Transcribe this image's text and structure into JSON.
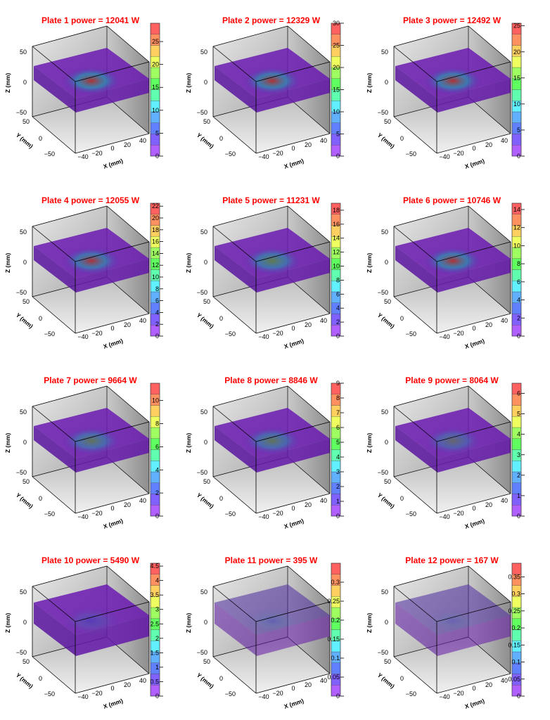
{
  "axes": {
    "x_label": "X (mm)",
    "y_label": "Y (mm)",
    "z_label": "Z (mm)",
    "x_ticks": [
      "−40",
      "−20",
      "0",
      "20",
      "40"
    ],
    "y_ticks": [
      "50",
      "0",
      "−50"
    ],
    "z_ticks": [
      "50",
      "0",
      "−50"
    ]
  },
  "palette": [
    "#b060ff",
    "#8060ff",
    "#6080ff",
    "#60b0ff",
    "#60f0ff",
    "#60ffb0",
    "#60ff60",
    "#a0ff60",
    "#f0ff60",
    "#ffd060",
    "#ff9060",
    "#ff6060"
  ],
  "chart_data": [
    {
      "type": "heatmap",
      "title": "Plate 1 power = 12041 W",
      "zmax": 29,
      "colorbar_ticks": [
        "0",
        "5",
        "10",
        "15",
        "20",
        "25"
      ],
      "tick_values": [
        0,
        5,
        10,
        15,
        20,
        25
      ],
      "hotspot": 0.85
    },
    {
      "type": "heatmap",
      "title": "Plate 2 power = 12329 W",
      "zmax": 30,
      "colorbar_ticks": [
        "0",
        "5",
        "10",
        "15",
        "20",
        "25",
        "30"
      ],
      "tick_values": [
        0,
        5,
        10,
        15,
        20,
        25,
        30
      ],
      "hotspot": 0.8
    },
    {
      "type": "heatmap",
      "title": "Plate 3 power = 12492 W",
      "zmax": 25.5,
      "colorbar_ticks": [
        "0",
        "5",
        "10",
        "15",
        "20",
        "25"
      ],
      "tick_values": [
        0,
        5,
        10,
        15,
        20,
        25
      ],
      "hotspot": 0.8
    },
    {
      "type": "heatmap",
      "title": "Plate 4 power = 12055 W",
      "zmax": 22.5,
      "colorbar_ticks": [
        "0",
        "2",
        "4",
        "6",
        "8",
        "10",
        "12",
        "14",
        "16",
        "18",
        "20",
        "22"
      ],
      "tick_values": [
        0,
        2,
        4,
        6,
        8,
        10,
        12,
        14,
        16,
        18,
        20,
        22
      ],
      "hotspot": 0.75
    },
    {
      "type": "heatmap",
      "title": "Plate 5 power = 11231 W",
      "zmax": 19,
      "colorbar_ticks": [
        "0",
        "2",
        "4",
        "6",
        "8",
        "10",
        "12",
        "14",
        "16",
        "18"
      ],
      "tick_values": [
        0,
        2,
        4,
        6,
        8,
        10,
        12,
        14,
        16,
        18
      ],
      "hotspot": 0.7
    },
    {
      "type": "heatmap",
      "title": "Plate 6 power = 10746 W",
      "zmax": 14.7,
      "colorbar_ticks": [
        "0",
        "2",
        "4",
        "6",
        "8",
        "10",
        "12",
        "14"
      ],
      "tick_values": [
        0,
        2,
        4,
        6,
        8,
        10,
        12,
        14
      ],
      "hotspot": 0.8
    },
    {
      "type": "heatmap",
      "title": "Plate 7 power = 9664 W",
      "zmax": 11.5,
      "colorbar_ticks": [
        "0",
        "2",
        "4",
        "6",
        "8",
        "10"
      ],
      "tick_values": [
        0,
        2,
        4,
        6,
        8,
        10
      ],
      "hotspot": 0.6
    },
    {
      "type": "heatmap",
      "title": "Plate 8 power = 8846 W",
      "zmax": 9,
      "colorbar_ticks": [
        "0",
        "1",
        "2",
        "3",
        "4",
        "5",
        "6",
        "7",
        "8",
        "9"
      ],
      "tick_values": [
        0,
        1,
        2,
        3,
        4,
        5,
        6,
        7,
        8,
        9
      ],
      "hotspot": 0.6
    },
    {
      "type": "heatmap",
      "title": "Plate 9 power = 8064 W",
      "zmax": 6.5,
      "colorbar_ticks": [
        "0",
        "1",
        "2",
        "3",
        "4",
        "5",
        "6"
      ],
      "tick_values": [
        0,
        1,
        2,
        3,
        4,
        5,
        6
      ],
      "hotspot": 0.45
    },
    {
      "type": "heatmap",
      "title": "Plate 10 power = 5490 W",
      "zmax": 4.6,
      "colorbar_ticks": [
        "0",
        "0.5",
        "1",
        "1.5",
        "2",
        "2.5",
        "3",
        "3.5",
        "4",
        "4.5"
      ],
      "tick_values": [
        0,
        0.5,
        1,
        1.5,
        2,
        2.5,
        3,
        3.5,
        4,
        4.5
      ],
      "hotspot": 0.2
    },
    {
      "type": "heatmap",
      "title": "Plate 11 power = 395 W",
      "zmax": 0.35,
      "colorbar_ticks": [
        "0",
        "0.05",
        "0.1",
        "0.15",
        "0.2",
        "0.25",
        "0.3"
      ],
      "tick_values": [
        0,
        0.05,
        0.1,
        0.15,
        0.2,
        0.25,
        0.3
      ],
      "hotspot": 0.1
    },
    {
      "type": "heatmap",
      "title": "Plate 12 power = 167 W",
      "zmax": 0.39,
      "colorbar_ticks": [
        "0",
        "0.05",
        "0.1",
        "0.15",
        "0.2",
        "0.25",
        "0.3",
        "0.35"
      ],
      "tick_values": [
        0,
        0.05,
        0.1,
        0.15,
        0.2,
        0.25,
        0.3,
        0.35
      ],
      "hotspot": 0.05
    }
  ]
}
